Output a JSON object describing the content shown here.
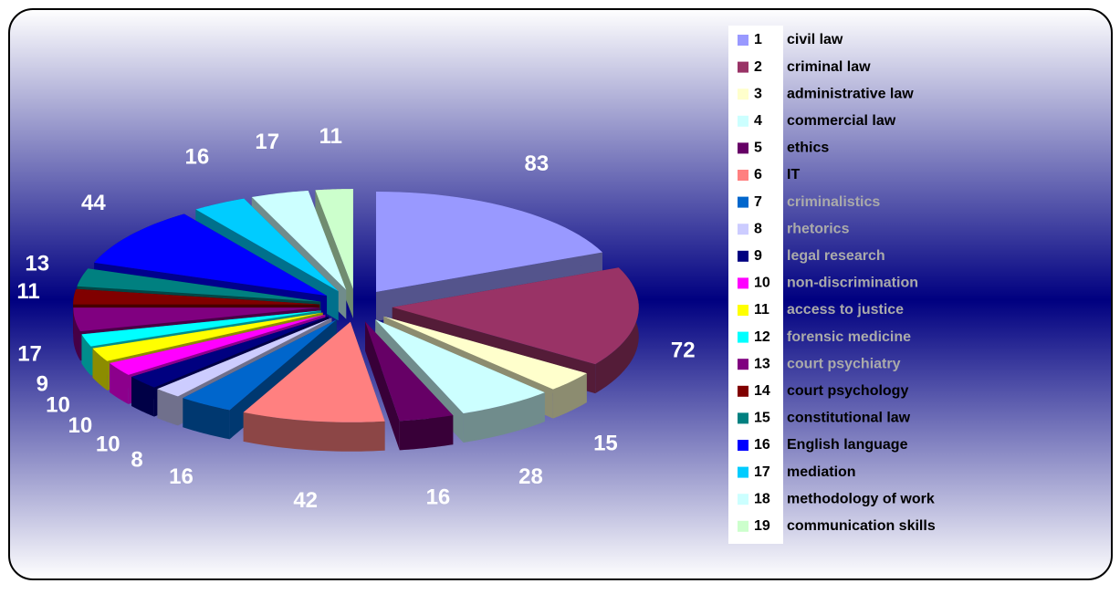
{
  "chart_data": {
    "type": "pie",
    "keys": [
      "1",
      "2",
      "3",
      "4",
      "5",
      "6",
      "7",
      "8",
      "9",
      "10",
      "11",
      "12",
      "13",
      "14",
      "15",
      "16",
      "17",
      "18",
      "19"
    ],
    "categories": [
      "civil law",
      "criminal law",
      "administrative law",
      "commercial law",
      "ethics",
      "IT",
      "criminalistics",
      "rhetorics",
      "legal research",
      "non-discrimination",
      "access to justice",
      "forensic medicine",
      "court psychiatry",
      "court psychology",
      "constitutional law",
      "English language",
      "mediation",
      "methodology of work",
      "communication skills"
    ],
    "values": [
      83,
      72,
      15,
      28,
      16,
      42,
      16,
      8,
      10,
      10,
      10,
      9,
      17,
      11,
      13,
      44,
      16,
      17,
      11
    ],
    "colors": [
      "#9999ff",
      "#993366",
      "#ffffcc",
      "#ccffff",
      "#660066",
      "#ff8080",
      "#0066cc",
      "#ccccff",
      "#000080",
      "#ff00ff",
      "#ffff00",
      "#00ffff",
      "#800080",
      "#800000",
      "#008080",
      "#0000ff",
      "#00ccff",
      "#ccffff",
      "#ccffcc"
    ],
    "legend": "right"
  }
}
